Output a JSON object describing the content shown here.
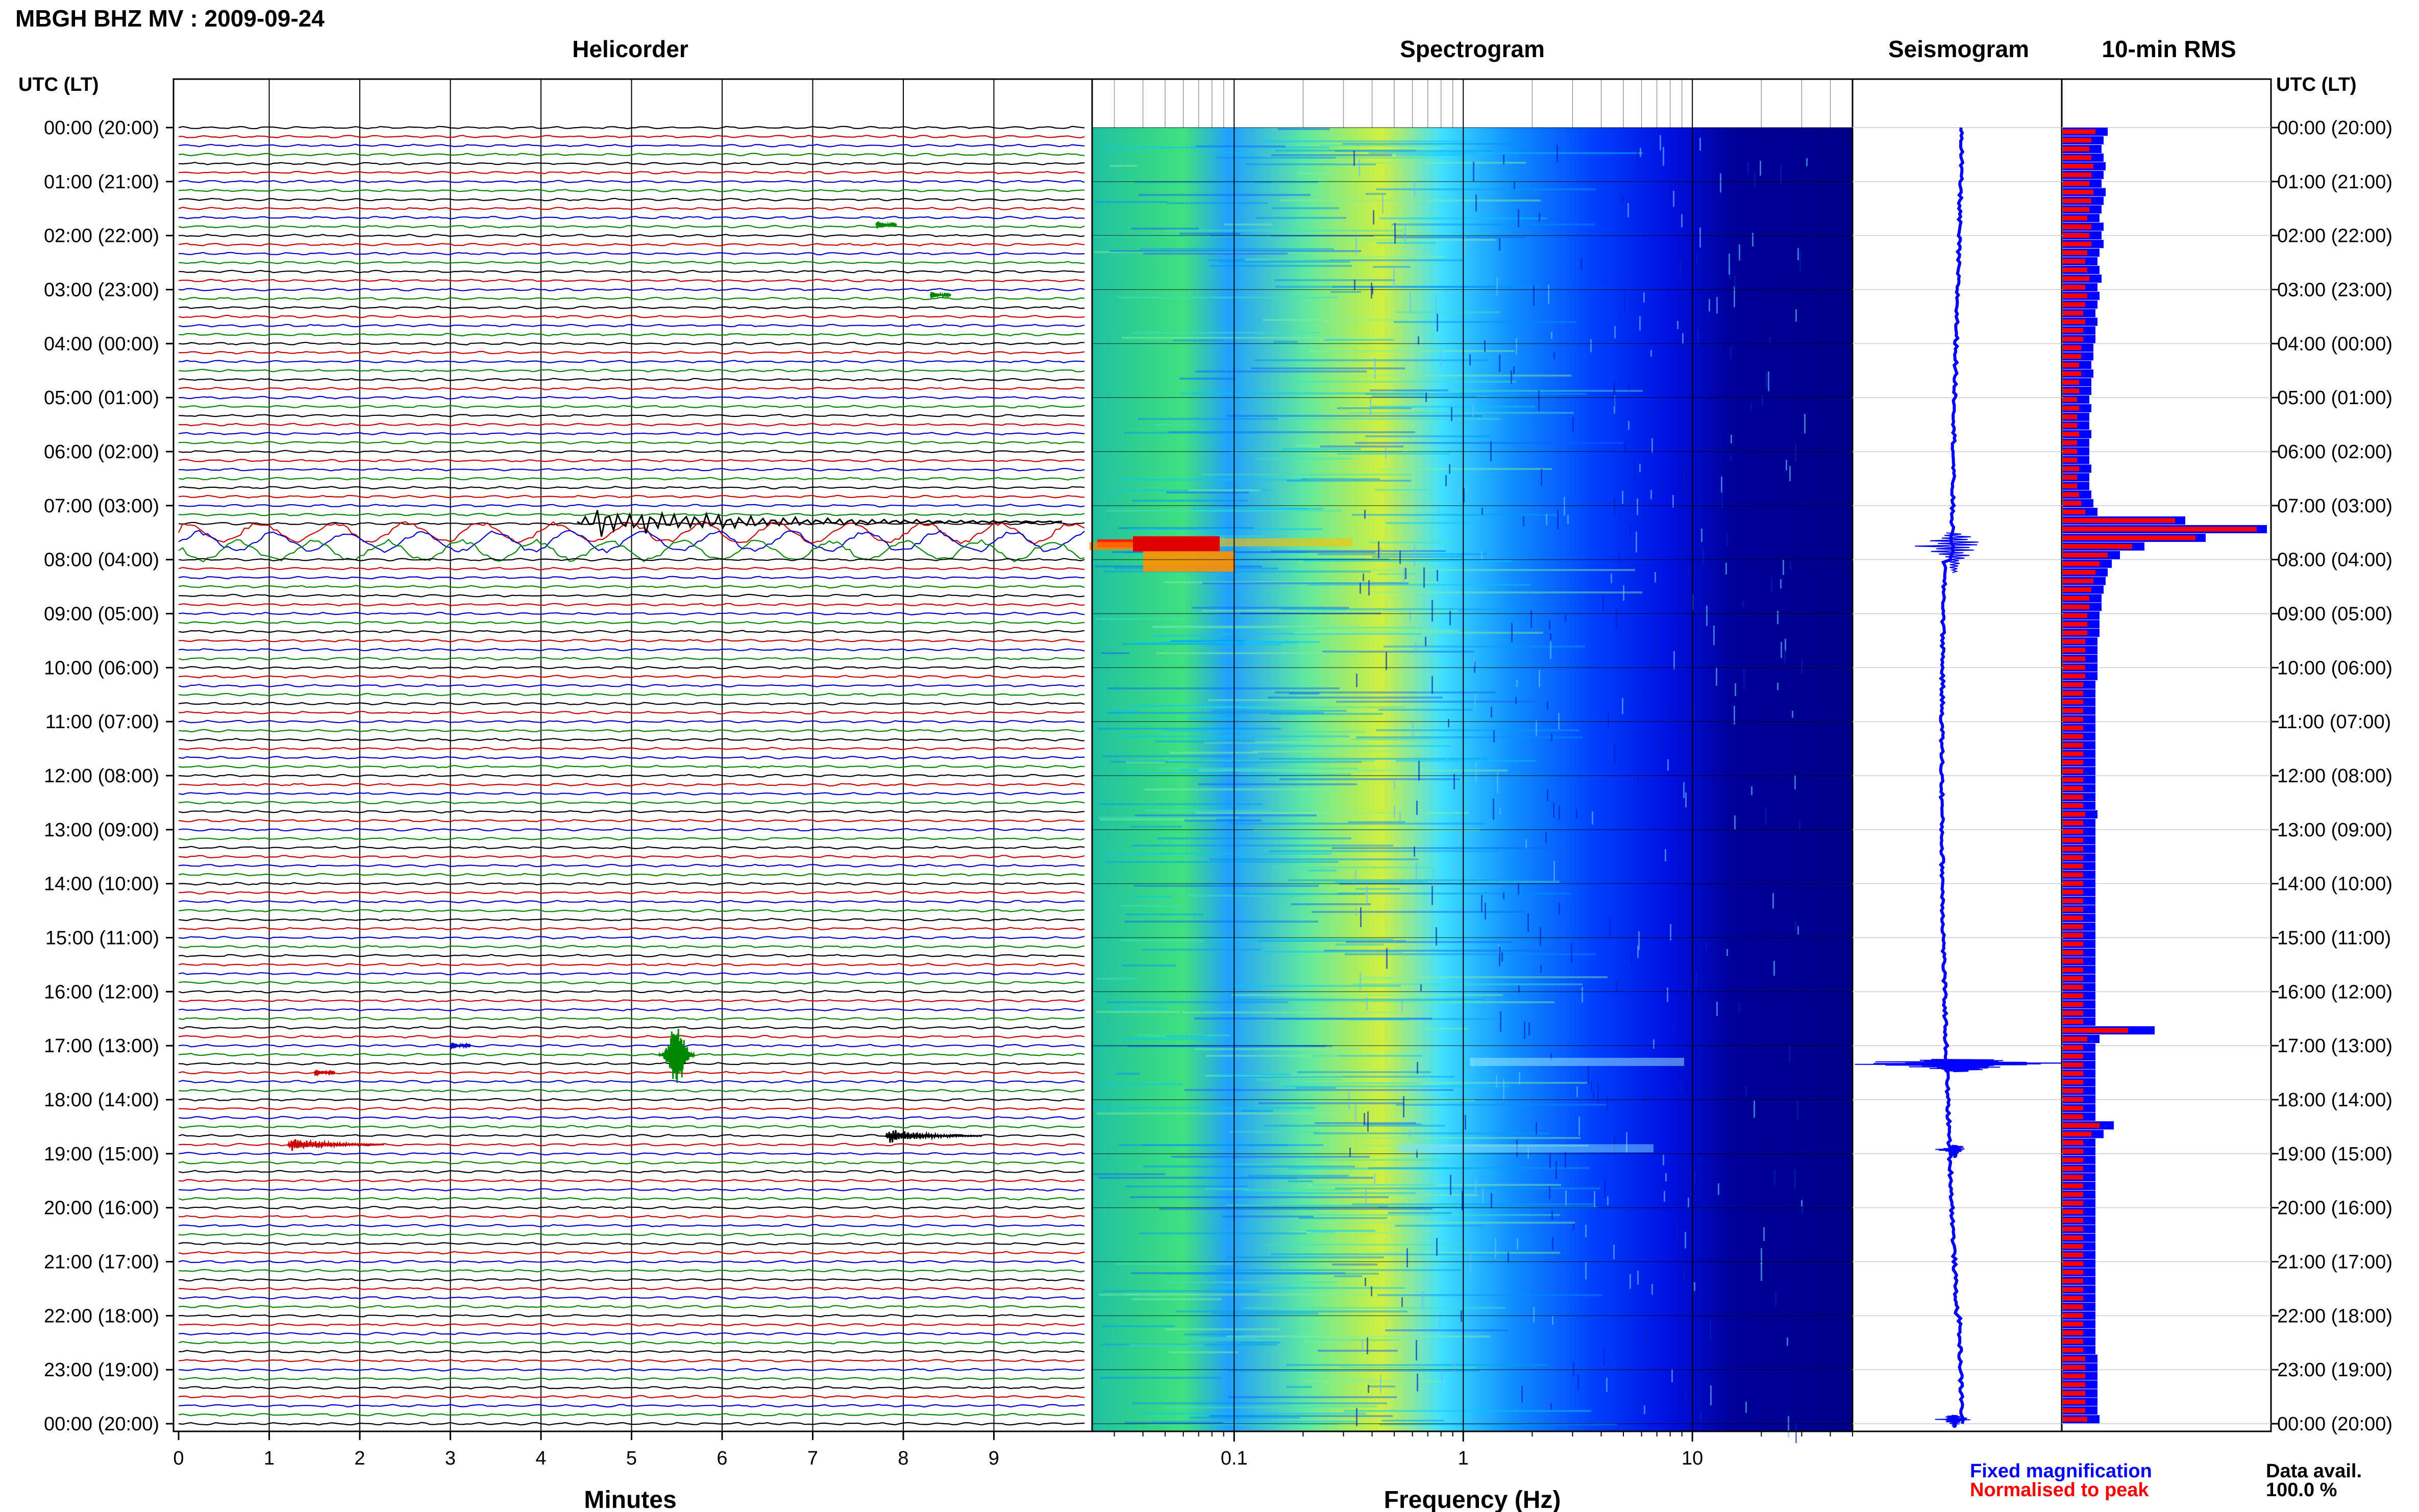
{
  "header": {
    "title": "MBGH BHZ MV : 2009-09-24",
    "panel_titles": [
      "Helicorder",
      "Spectrogram",
      "Seismogram",
      "10-min RMS"
    ],
    "utc_label": "UTC (LT)"
  },
  "time_labels": [
    "00:00 (20:00)",
    "01:00 (21:00)",
    "02:00 (22:00)",
    "03:00 (23:00)",
    "04:00 (00:00)",
    "05:00 (01:00)",
    "06:00 (02:00)",
    "07:00 (03:00)",
    "08:00 (04:00)",
    "09:00 (05:00)",
    "10:00 (06:00)",
    "11:00 (07:00)",
    "12:00 (08:00)",
    "13:00 (09:00)",
    "14:00 (10:00)",
    "15:00 (11:00)",
    "16:00 (12:00)",
    "17:00 (13:00)",
    "18:00 (14:00)",
    "19:00 (15:00)",
    "20:00 (16:00)",
    "21:00 (17:00)",
    "22:00 (18:00)",
    "23:00 (19:00)",
    "00:00 (20:00)"
  ],
  "helicorder": {
    "xlabel": "Minutes",
    "x_ticks": [
      "0",
      "1",
      "2",
      "3",
      "4",
      "5",
      "6",
      "7",
      "8",
      "9"
    ],
    "line_colors": [
      "#000000",
      "#cc0000",
      "#0000cc",
      "#008800"
    ],
    "events": [
      {
        "minute": 4.4,
        "hour": 7.3,
        "color": "#000000",
        "type": "teleseism"
      },
      {
        "minute": 7.7,
        "hour": 1.8,
        "color": "#008800",
        "type": "small"
      },
      {
        "minute": 8.3,
        "hour": 3.1,
        "color": "#008800",
        "type": "small"
      },
      {
        "minute": 3.0,
        "hour": 17.0,
        "color": "#0000cc",
        "type": "small"
      },
      {
        "minute": 1.5,
        "hour": 17.5,
        "color": "#cc0000",
        "type": "small"
      },
      {
        "minute": 5.5,
        "hour": 17.17,
        "color": "#008800",
        "type": "local"
      },
      {
        "minute": 7.8,
        "hour": 18.67,
        "color": "#000000",
        "type": "regional"
      },
      {
        "minute": 1.2,
        "hour": 18.83,
        "color": "#cc0000",
        "type": "regional"
      }
    ]
  },
  "spectrogram": {
    "xlabel": "Frequency (Hz)",
    "x_ticks": [
      "0.1",
      "1",
      "10"
    ],
    "xscale": "log",
    "colormap": [
      "#00007f",
      "#0000ff",
      "#0080ff",
      "#00ffff",
      "#80ff80",
      "#ffff00",
      "#ff8000",
      "#ff0000"
    ]
  },
  "chart_data": [
    {
      "type": "line",
      "title": "Seismogram",
      "xlabel": "",
      "ylabel": "",
      "series_color": "#0000ff",
      "events_hours": [
        7.75,
        17.33,
        18.92,
        23.92
      ]
    },
    {
      "type": "bar",
      "title": "10-min RMS",
      "orientation": "horizontal",
      "ylim_hours": [
        0,
        24
      ],
      "series": [
        {
          "name": "Fixed magnification",
          "color": "#0000ff"
        },
        {
          "name": "Normalised to peak",
          "color": "#ff0000"
        }
      ],
      "values_fixed": [
        0.22,
        0.2,
        0.19,
        0.2,
        0.21,
        0.2,
        0.19,
        0.21,
        0.2,
        0.19,
        0.18,
        0.2,
        0.19,
        0.2,
        0.18,
        0.17,
        0.18,
        0.19,
        0.17,
        0.18,
        0.17,
        0.16,
        0.17,
        0.16,
        0.16,
        0.15,
        0.15,
        0.14,
        0.15,
        0.14,
        0.14,
        0.13,
        0.14,
        0.13,
        0.13,
        0.14,
        0.13,
        0.13,
        0.13,
        0.14,
        0.13,
        0.13,
        0.14,
        0.15,
        0.17,
        0.6,
        1.0,
        0.7,
        0.4,
        0.28,
        0.24,
        0.22,
        0.21,
        0.2,
        0.19,
        0.19,
        0.18,
        0.18,
        0.18,
        0.17,
        0.17,
        0.17,
        0.17,
        0.17,
        0.16,
        0.16,
        0.16,
        0.16,
        0.16,
        0.16,
        0.16,
        0.16,
        0.16,
        0.16,
        0.16,
        0.16,
        0.16,
        0.16,
        0.16,
        0.17,
        0.16,
        0.16,
        0.16,
        0.16,
        0.16,
        0.16,
        0.16,
        0.16,
        0.16,
        0.16,
        0.16,
        0.16,
        0.16,
        0.16,
        0.16,
        0.16,
        0.16,
        0.16,
        0.16,
        0.16,
        0.16,
        0.16,
        0.16,
        0.16,
        0.45,
        0.18,
        0.16,
        0.16,
        0.16,
        0.16,
        0.16,
        0.16,
        0.16,
        0.16,
        0.16,
        0.25,
        0.2,
        0.16,
        0.16,
        0.16,
        0.16,
        0.16,
        0.16,
        0.16,
        0.16,
        0.16,
        0.16,
        0.16,
        0.16,
        0.16,
        0.16,
        0.16,
        0.16,
        0.16,
        0.16,
        0.16,
        0.16,
        0.16,
        0.16,
        0.16,
        0.16,
        0.16,
        0.17,
        0.17,
        0.17,
        0.17,
        0.17,
        0.17,
        0.17,
        0.18
      ],
      "values_normalised": [
        0.16,
        0.14,
        0.13,
        0.14,
        0.15,
        0.14,
        0.13,
        0.15,
        0.14,
        0.13,
        0.12,
        0.14,
        0.13,
        0.14,
        0.12,
        0.11,
        0.12,
        0.13,
        0.11,
        0.12,
        0.11,
        0.1,
        0.11,
        0.1,
        0.1,
        0.09,
        0.09,
        0.08,
        0.09,
        0.08,
        0.08,
        0.07,
        0.08,
        0.07,
        0.07,
        0.08,
        0.07,
        0.07,
        0.07,
        0.08,
        0.07,
        0.07,
        0.08,
        0.09,
        0.11,
        0.55,
        0.95,
        0.65,
        0.34,
        0.22,
        0.18,
        0.16,
        0.15,
        0.14,
        0.13,
        0.13,
        0.12,
        0.12,
        0.12,
        0.11,
        0.11,
        0.11,
        0.11,
        0.11,
        0.1,
        0.1,
        0.1,
        0.1,
        0.1,
        0.1,
        0.1,
        0.1,
        0.1,
        0.1,
        0.1,
        0.1,
        0.1,
        0.1,
        0.1,
        0.11,
        0.1,
        0.1,
        0.1,
        0.1,
        0.1,
        0.1,
        0.1,
        0.1,
        0.1,
        0.1,
        0.1,
        0.1,
        0.1,
        0.1,
        0.1,
        0.1,
        0.1,
        0.1,
        0.1,
        0.1,
        0.1,
        0.1,
        0.1,
        0.1,
        0.32,
        0.12,
        0.1,
        0.1,
        0.1,
        0.1,
        0.1,
        0.1,
        0.1,
        0.1,
        0.1,
        0.18,
        0.14,
        0.1,
        0.1,
        0.1,
        0.1,
        0.1,
        0.1,
        0.1,
        0.1,
        0.1,
        0.1,
        0.1,
        0.1,
        0.1,
        0.1,
        0.1,
        0.1,
        0.1,
        0.1,
        0.1,
        0.1,
        0.1,
        0.1,
        0.1,
        0.1,
        0.1,
        0.11,
        0.11,
        0.11,
        0.11,
        0.11,
        0.11,
        0.11,
        0.12
      ]
    }
  ],
  "legend": {
    "fixed_label": "Fixed magnification",
    "fixed_color": "#0000ff",
    "normalised_label": "Normalised to peak",
    "normalised_color": "#ff0000",
    "data_avail_label": "Data avail.",
    "data_avail_value": "100.0 %"
  }
}
